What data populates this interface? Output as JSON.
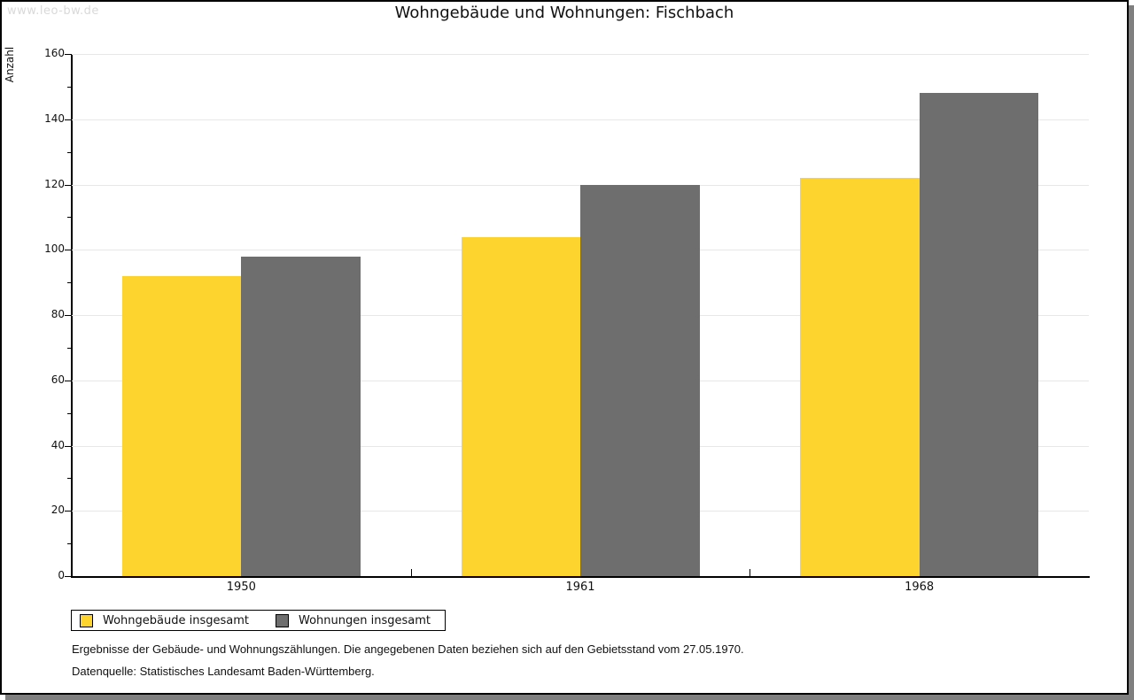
{
  "watermark": "www.leo-bw.de",
  "title": "Wohngebäude und Wohnungen: Fischbach",
  "chart_data": {
    "type": "bar",
    "title": "Wohngebäude und Wohnungen: Fischbach",
    "xlabel": "",
    "ylabel": "Anzahl",
    "categories": [
      "1950",
      "1961",
      "1968"
    ],
    "series": [
      {
        "name": "Wohngebäude insgesamt",
        "color": "#FCD42D",
        "values": [
          92,
          104,
          122
        ]
      },
      {
        "name": "Wohnungen insgesamt",
        "color": "#6E6E6E",
        "values": [
          98,
          120,
          148
        ]
      }
    ],
    "ylim": [
      0,
      160
    ],
    "y_major_step": 20,
    "y_minor_step": 10,
    "grid": true,
    "legend_position": "bottom-left"
  },
  "footnotes": [
    "Ergebnisse der Gebäude- und Wohnungszählungen. Die angegebenen Daten beziehen sich auf den Gebietsstand vom 27.05.1970.",
    "Datenquelle: Statistisches Landesamt Baden-Württemberg."
  ],
  "colors": {
    "bar_yellow": "#FCD42D",
    "bar_gray": "#6E6E6E",
    "grid": "#E7E7E7",
    "axis": "#000000",
    "watermark": "#D9D9D9",
    "shadow": "#7F7F7F"
  }
}
